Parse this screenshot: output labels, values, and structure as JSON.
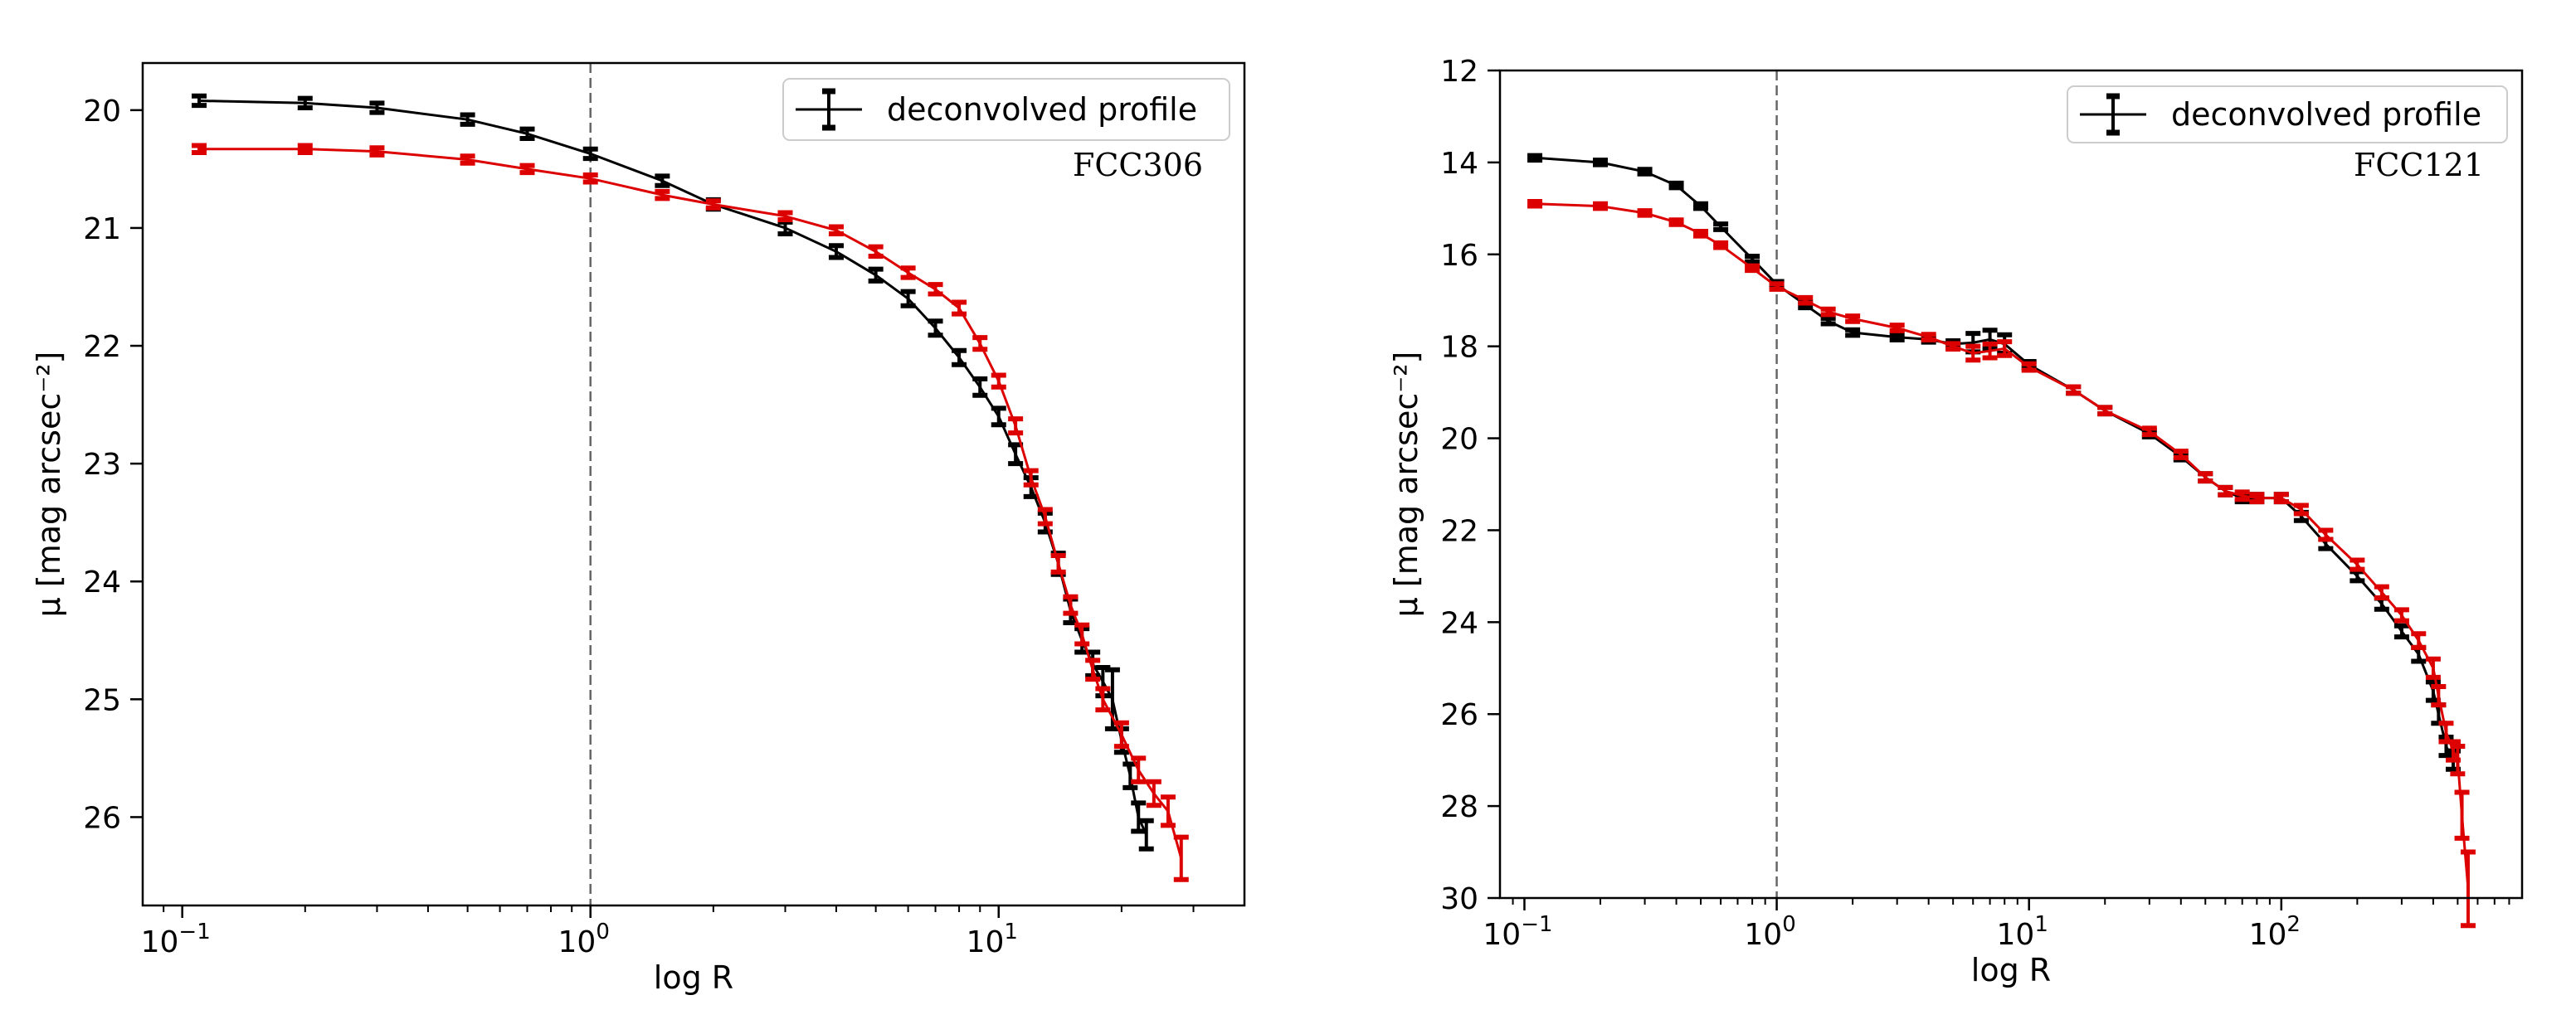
{
  "chart_data": [
    {
      "type": "line",
      "xscale": "log",
      "yaxis": "inverted",
      "xlabel": "log R",
      "ylabel": "μ [mag arcsec⁻²]",
      "xlim": [
        0.08,
        40
      ],
      "ylim": [
        26.75,
        19.6
      ],
      "xticks": [
        {
          "value": 0.1,
          "base": "10",
          "exp": "−1"
        },
        {
          "value": 1,
          "base": "10",
          "exp": "0"
        },
        {
          "value": 10,
          "base": "10",
          "exp": "1"
        }
      ],
      "yticks": [
        20,
        21,
        22,
        23,
        24,
        25,
        26
      ],
      "vline": 1,
      "legend": {
        "label": "deconvolved profile",
        "loc": "top-right"
      },
      "annotation": "FCC306",
      "series": [
        {
          "name": "black",
          "color": "#000000",
          "points": [
            [
              0.11,
              19.92
            ],
            [
              0.2,
              19.94
            ],
            [
              0.3,
              19.98
            ],
            [
              0.5,
              20.08
            ],
            [
              0.7,
              20.2
            ],
            [
              1.0,
              20.37
            ],
            [
              1.5,
              20.6
            ],
            [
              2.0,
              20.8
            ],
            [
              3.0,
              21.0
            ],
            [
              4.0,
              21.2
            ],
            [
              5.0,
              21.4
            ],
            [
              6.0,
              21.6
            ],
            [
              7.0,
              21.85
            ],
            [
              8.0,
              22.1
            ],
            [
              9.0,
              22.35
            ],
            [
              10.0,
              22.6
            ],
            [
              11.0,
              22.92
            ],
            [
              12.0,
              23.2
            ],
            [
              13.0,
              23.5
            ],
            [
              14.0,
              23.85
            ],
            [
              15.0,
              24.25
            ],
            [
              16.0,
              24.5
            ],
            [
              17.0,
              24.7
            ],
            [
              18.0,
              24.85
            ],
            [
              19.0,
              25.0
            ],
            [
              20.0,
              25.35
            ],
            [
              21.0,
              25.65
            ],
            [
              22.0,
              26.0
            ],
            [
              23.0,
              26.15
            ]
          ],
          "errors": [
            0.04,
            0.04,
            0.04,
            0.04,
            0.04,
            0.04,
            0.04,
            0.04,
            0.05,
            0.05,
            0.05,
            0.06,
            0.06,
            0.06,
            0.07,
            0.07,
            0.08,
            0.08,
            0.08,
            0.09,
            0.1,
            0.1,
            0.1,
            0.12,
            0.25,
            0.1,
            0.1,
            0.12,
            0.12
          ]
        },
        {
          "name": "red",
          "color": "#dd0000",
          "points": [
            [
              0.11,
              20.33
            ],
            [
              0.2,
              20.33
            ],
            [
              0.3,
              20.35
            ],
            [
              0.5,
              20.42
            ],
            [
              0.7,
              20.5
            ],
            [
              1.0,
              20.58
            ],
            [
              1.5,
              20.72
            ],
            [
              2.0,
              20.8
            ],
            [
              3.0,
              20.9
            ],
            [
              4.0,
              21.02
            ],
            [
              5.0,
              21.2
            ],
            [
              6.0,
              21.38
            ],
            [
              7.0,
              21.52
            ],
            [
              8.0,
              21.68
            ],
            [
              9.0,
              21.98
            ],
            [
              10.0,
              22.3
            ],
            [
              11.0,
              22.68
            ],
            [
              12.0,
              23.12
            ],
            [
              13.0,
              23.45
            ],
            [
              14.0,
              23.85
            ],
            [
              15.0,
              24.2
            ],
            [
              16.0,
              24.45
            ],
            [
              17.0,
              24.75
            ],
            [
              18.0,
              25.0
            ],
            [
              20.0,
              25.3
            ],
            [
              22.0,
              25.6
            ],
            [
              24.0,
              25.8
            ],
            [
              26.0,
              25.95
            ],
            [
              28.0,
              26.35
            ]
          ],
          "errors": [
            0.03,
            0.03,
            0.03,
            0.03,
            0.03,
            0.03,
            0.03,
            0.03,
            0.03,
            0.03,
            0.04,
            0.04,
            0.04,
            0.05,
            0.05,
            0.05,
            0.06,
            0.06,
            0.06,
            0.07,
            0.07,
            0.08,
            0.08,
            0.09,
            0.1,
            0.1,
            0.1,
            0.12,
            0.18
          ]
        }
      ]
    },
    {
      "type": "line",
      "xscale": "log",
      "yaxis": "inverted",
      "xlabel": "log R",
      "ylabel": "μ [mag arcsec⁻²]",
      "xlim": [
        0.08,
        900
      ],
      "ylim": [
        30,
        12
      ],
      "xticks": [
        {
          "value": 0.1,
          "base": "10",
          "exp": "−1"
        },
        {
          "value": 1,
          "base": "10",
          "exp": "0"
        },
        {
          "value": 10,
          "base": "10",
          "exp": "1"
        },
        {
          "value": 100,
          "base": "10",
          "exp": "2"
        }
      ],
      "yticks": [
        12,
        14,
        16,
        18,
        20,
        22,
        24,
        26,
        28,
        30
      ],
      "vline": 1,
      "legend": {
        "label": "deconvolved profile",
        "loc": "top-right"
      },
      "annotation": "FCC121",
      "series": [
        {
          "name": "black",
          "color": "#000000",
          "points": [
            [
              0.11,
              13.9
            ],
            [
              0.2,
              14.0
            ],
            [
              0.3,
              14.2
            ],
            [
              0.4,
              14.5
            ],
            [
              0.5,
              14.95
            ],
            [
              0.6,
              15.4
            ],
            [
              0.8,
              16.1
            ],
            [
              1.0,
              16.65
            ],
            [
              1.3,
              17.1
            ],
            [
              1.6,
              17.45
            ],
            [
              2.0,
              17.7
            ],
            [
              3.0,
              17.8
            ],
            [
              4.0,
              17.85
            ],
            [
              5.0,
              17.95
            ],
            [
              6.0,
              17.92
            ],
            [
              7.0,
              17.85
            ],
            [
              8.0,
              17.95
            ],
            [
              10.0,
              18.4
            ],
            [
              15.0,
              18.95
            ],
            [
              20.0,
              19.4
            ],
            [
              30.0,
              19.9
            ],
            [
              40.0,
              20.4
            ],
            [
              50.0,
              20.85
            ],
            [
              60.0,
              21.15
            ],
            [
              70.0,
              21.3
            ],
            [
              80.0,
              21.3
            ],
            [
              100.0,
              21.3
            ],
            [
              120.0,
              21.7
            ],
            [
              150.0,
              22.3
            ],
            [
              200.0,
              23.0
            ],
            [
              250.0,
              23.6
            ],
            [
              300.0,
              24.2
            ],
            [
              350.0,
              24.7
            ],
            [
              400.0,
              25.5
            ],
            [
              420.0,
              26.0
            ],
            [
              450.0,
              26.7
            ],
            [
              480.0,
              27.0
            ]
          ],
          "errors": [
            0.05,
            0.05,
            0.05,
            0.05,
            0.05,
            0.06,
            0.06,
            0.06,
            0.06,
            0.06,
            0.06,
            0.06,
            0.06,
            0.07,
            0.2,
            0.2,
            0.2,
            0.07,
            0.07,
            0.07,
            0.07,
            0.07,
            0.08,
            0.08,
            0.08,
            0.08,
            0.08,
            0.09,
            0.1,
            0.1,
            0.12,
            0.12,
            0.15,
            0.2,
            0.2,
            0.2,
            0.2
          ]
        },
        {
          "name": "red",
          "color": "#dd0000",
          "points": [
            [
              0.11,
              14.9
            ],
            [
              0.2,
              14.95
            ],
            [
              0.3,
              15.1
            ],
            [
              0.4,
              15.3
            ],
            [
              0.5,
              15.55
            ],
            [
              0.6,
              15.8
            ],
            [
              0.8,
              16.3
            ],
            [
              1.0,
              16.7
            ],
            [
              1.3,
              17.0
            ],
            [
              1.6,
              17.25
            ],
            [
              2.0,
              17.4
            ],
            [
              3.0,
              17.6
            ],
            [
              4.0,
              17.8
            ],
            [
              5.0,
              18.0
            ],
            [
              6.0,
              18.15
            ],
            [
              7.0,
              18.1
            ],
            [
              8.0,
              18.05
            ],
            [
              10.0,
              18.45
            ],
            [
              15.0,
              18.95
            ],
            [
              20.0,
              19.4
            ],
            [
              30.0,
              19.85
            ],
            [
              40.0,
              20.35
            ],
            [
              50.0,
              20.85
            ],
            [
              60.0,
              21.15
            ],
            [
              70.0,
              21.25
            ],
            [
              80.0,
              21.3
            ],
            [
              100.0,
              21.3
            ],
            [
              120.0,
              21.55
            ],
            [
              150.0,
              22.1
            ],
            [
              200.0,
              22.75
            ],
            [
              250.0,
              23.35
            ],
            [
              300.0,
              23.85
            ],
            [
              350.0,
              24.4
            ],
            [
              400.0,
              25.0
            ],
            [
              420.0,
              25.6
            ],
            [
              450.0,
              26.4
            ],
            [
              480.0,
              26.8
            ],
            [
              500.0,
              27.0
            ],
            [
              520.0,
              28.2
            ],
            [
              550.0,
              29.8
            ]
          ],
          "errors": [
            0.05,
            0.05,
            0.05,
            0.05,
            0.05,
            0.05,
            0.05,
            0.06,
            0.06,
            0.06,
            0.06,
            0.06,
            0.06,
            0.06,
            0.15,
            0.15,
            0.15,
            0.07,
            0.07,
            0.07,
            0.07,
            0.07,
            0.08,
            0.08,
            0.08,
            0.08,
            0.08,
            0.09,
            0.1,
            0.1,
            0.12,
            0.12,
            0.15,
            0.2,
            0.2,
            0.2,
            0.2,
            0.3,
            0.5,
            0.8
          ]
        }
      ]
    }
  ]
}
